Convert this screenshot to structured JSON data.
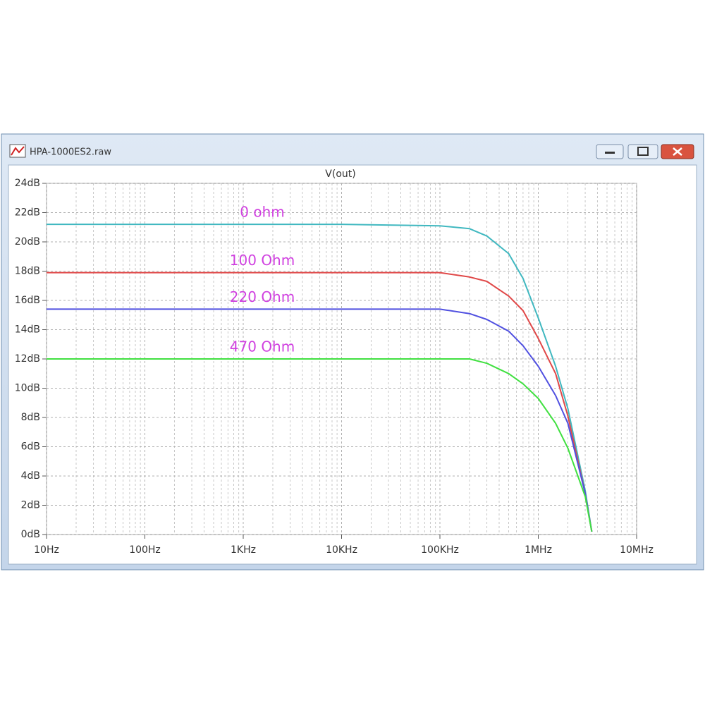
{
  "window": {
    "title": "HPA-1000ES2.raw"
  },
  "chart_data": {
    "type": "line",
    "title": "V(out)",
    "title_color": "#40d840",
    "x": [
      10,
      100,
      1000,
      10000,
      100000,
      200000,
      300000,
      500000,
      700000,
      1000000,
      1500000,
      2000000,
      3000000,
      3500000
    ],
    "xscale": "log",
    "xlim": [
      10,
      10000000
    ],
    "xticks": [
      {
        "value": 10,
        "label": "10Hz"
      },
      {
        "value": 100,
        "label": "100Hz"
      },
      {
        "value": 1000,
        "label": "1KHz"
      },
      {
        "value": 10000,
        "label": "10KHz"
      },
      {
        "value": 100000,
        "label": "100KHz"
      },
      {
        "value": 1000000,
        "label": "1MHz"
      },
      {
        "value": 10000000,
        "label": "10MHz"
      }
    ],
    "ylim": [
      0,
      24
    ],
    "yticks": [
      {
        "value": 0,
        "label": "0dB"
      },
      {
        "value": 2,
        "label": "2dB"
      },
      {
        "value": 4,
        "label": "4dB"
      },
      {
        "value": 6,
        "label": "6dB"
      },
      {
        "value": 8,
        "label": "8dB"
      },
      {
        "value": 10,
        "label": "10dB"
      },
      {
        "value": 12,
        "label": "12dB"
      },
      {
        "value": 14,
        "label": "14dB"
      },
      {
        "value": 16,
        "label": "16dB"
      },
      {
        "value": 18,
        "label": "18dB"
      },
      {
        "value": 20,
        "label": "20dB"
      },
      {
        "value": 22,
        "label": "22dB"
      },
      {
        "value": 24,
        "label": "24dB"
      }
    ],
    "grid": true,
    "label_color": "#d040e0",
    "series": [
      {
        "name": "0 ohm",
        "color": "#40b8c0",
        "values": [
          21.2,
          21.2,
          21.2,
          21.2,
          21.1,
          20.9,
          20.4,
          19.2,
          17.5,
          14.8,
          11.5,
          8.6,
          3.0,
          0.2
        ]
      },
      {
        "name": "100 Ohm",
        "color": "#e04848",
        "values": [
          17.9,
          17.9,
          17.9,
          17.9,
          17.9,
          17.6,
          17.3,
          16.3,
          15.3,
          13.4,
          11.0,
          8.1,
          2.8,
          0.2
        ]
      },
      {
        "name": "220 Ohm",
        "color": "#5050e0",
        "values": [
          15.4,
          15.4,
          15.4,
          15.4,
          15.4,
          15.1,
          14.7,
          13.9,
          12.9,
          11.5,
          9.5,
          7.6,
          2.8,
          0.2
        ]
      },
      {
        "name": "470 Ohm",
        "color": "#40e040",
        "values": [
          12.0,
          12.0,
          12.0,
          12.0,
          12.0,
          12.0,
          11.7,
          11.0,
          10.3,
          9.3,
          7.6,
          5.9,
          2.6,
          0.2
        ]
      }
    ]
  }
}
